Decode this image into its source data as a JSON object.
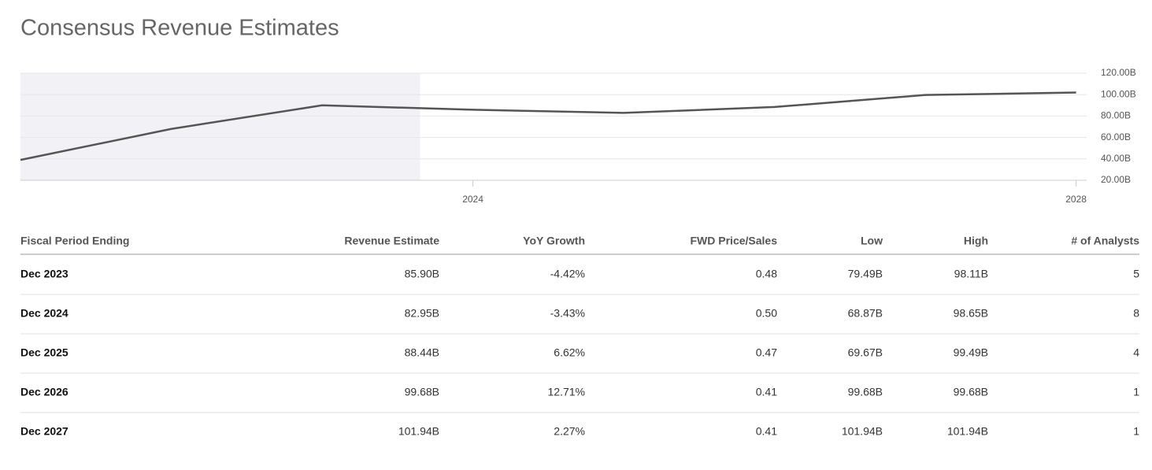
{
  "title": "Consensus Revenue Estimates",
  "chart_data": {
    "type": "line",
    "x": [
      2021,
      2022,
      2023,
      2024,
      2025,
      2026,
      2027,
      2028
    ],
    "series": [
      {
        "color": "#555555",
        "values": [
          39,
          68,
          90,
          85.9,
          82.95,
          88.44,
          99.68,
          101.94
        ]
      }
    ],
    "xlim": [
      2021,
      2028.07
    ],
    "xticks": [
      2024,
      2028
    ],
    "ylim": [
      20,
      120
    ],
    "yticks": [
      {
        "value": 20,
        "label": "20.00B"
      },
      {
        "value": 40,
        "label": "40.00B"
      },
      {
        "value": 60,
        "label": "60.00B"
      },
      {
        "value": 80,
        "label": "80.00B"
      },
      {
        "value": 100,
        "label": "100.00B"
      },
      {
        "value": 120,
        "label": "120.00B"
      }
    ],
    "grid": true,
    "shaded_xlim": [
      2021,
      2023.65
    ],
    "shade_color": "#f2f2f6"
  },
  "table": {
    "header": [
      "Fiscal Period Ending",
      "Revenue Estimate",
      "YoY Growth",
      "FWD Price/Sales",
      "Low",
      "High",
      "# of Analysts"
    ],
    "rows": [
      [
        "Dec 2023",
        "85.90B",
        "-4.42%",
        "0.48",
        "79.49B",
        "98.11B",
        "5"
      ],
      [
        "Dec 2024",
        "82.95B",
        "-3.43%",
        "0.50",
        "68.87B",
        "98.65B",
        "8"
      ],
      [
        "Dec 2025",
        "88.44B",
        "6.62%",
        "0.47",
        "69.67B",
        "99.49B",
        "4"
      ],
      [
        "Dec 2026",
        "99.68B",
        "12.71%",
        "0.41",
        "99.68B",
        "99.68B",
        "1"
      ],
      [
        "Dec 2027",
        "101.94B",
        "2.27%",
        "0.41",
        "101.94B",
        "101.94B",
        "1"
      ]
    ]
  }
}
